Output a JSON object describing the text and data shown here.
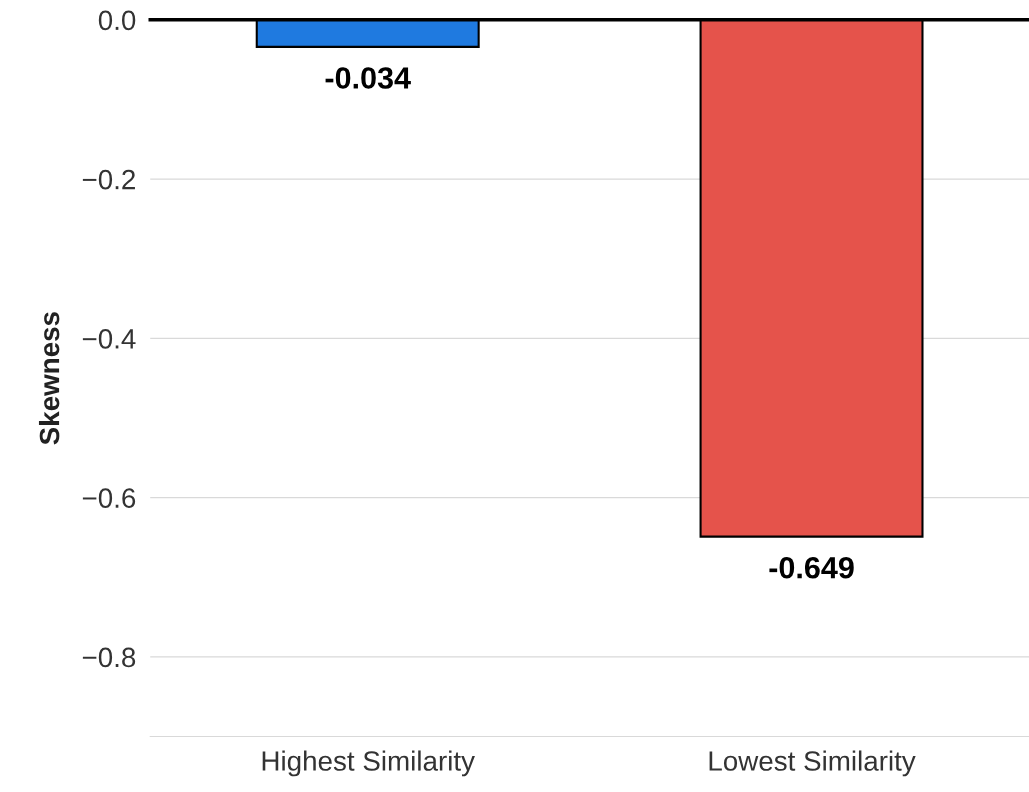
{
  "chart_data": {
    "type": "bar",
    "ylabel": "Skewness",
    "categories": [
      "Highest Similarity",
      "Lowest Similarity"
    ],
    "values": [
      -0.034,
      -0.649
    ],
    "colors": [
      "#1f7ae0",
      "#e5534b"
    ],
    "ylim": [
      -0.9,
      0.0
    ],
    "yticks": [
      {
        "value": 0.0,
        "label": "0.0"
      },
      {
        "value": -0.2,
        "label": "−0.2"
      },
      {
        "value": -0.4,
        "label": "−0.4"
      },
      {
        "value": -0.6,
        "label": "−0.6"
      },
      {
        "value": -0.8,
        "label": "−0.8"
      }
    ],
    "grid": "y",
    "data_labels": true,
    "ref_lines": [
      {
        "axis": "y",
        "value": 0,
        "color": "#000000"
      }
    ]
  }
}
